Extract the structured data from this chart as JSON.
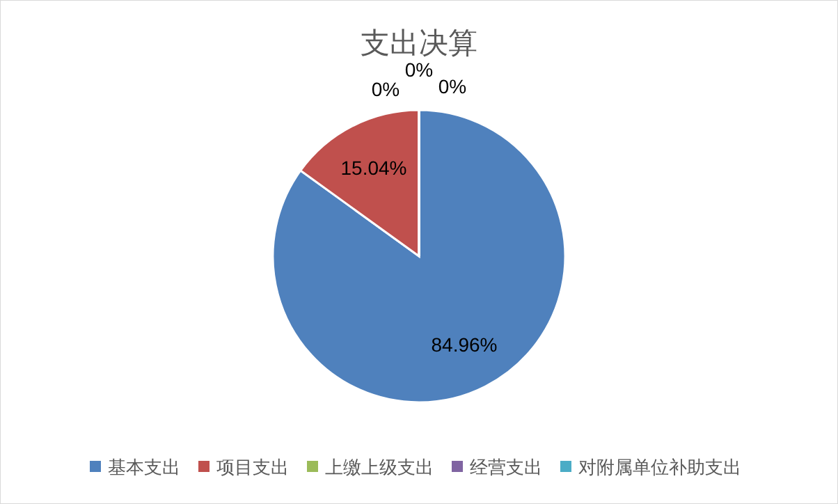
{
  "chart_data": {
    "type": "pie",
    "title": "支出决算",
    "categories": [
      "基本支出",
      "项目支出",
      "上缴上级支出",
      "经营支出",
      "对附属单位补助支出"
    ],
    "values": [
      84.96,
      15.04,
      0,
      0,
      0
    ],
    "value_labels": [
      "84.96%",
      "15.04%",
      "0%",
      "0%",
      "0%"
    ],
    "colors": [
      "#4f81bd",
      "#c0504d",
      "#9bbb59",
      "#8064a2",
      "#4bacc6"
    ],
    "legend": "bottom"
  }
}
